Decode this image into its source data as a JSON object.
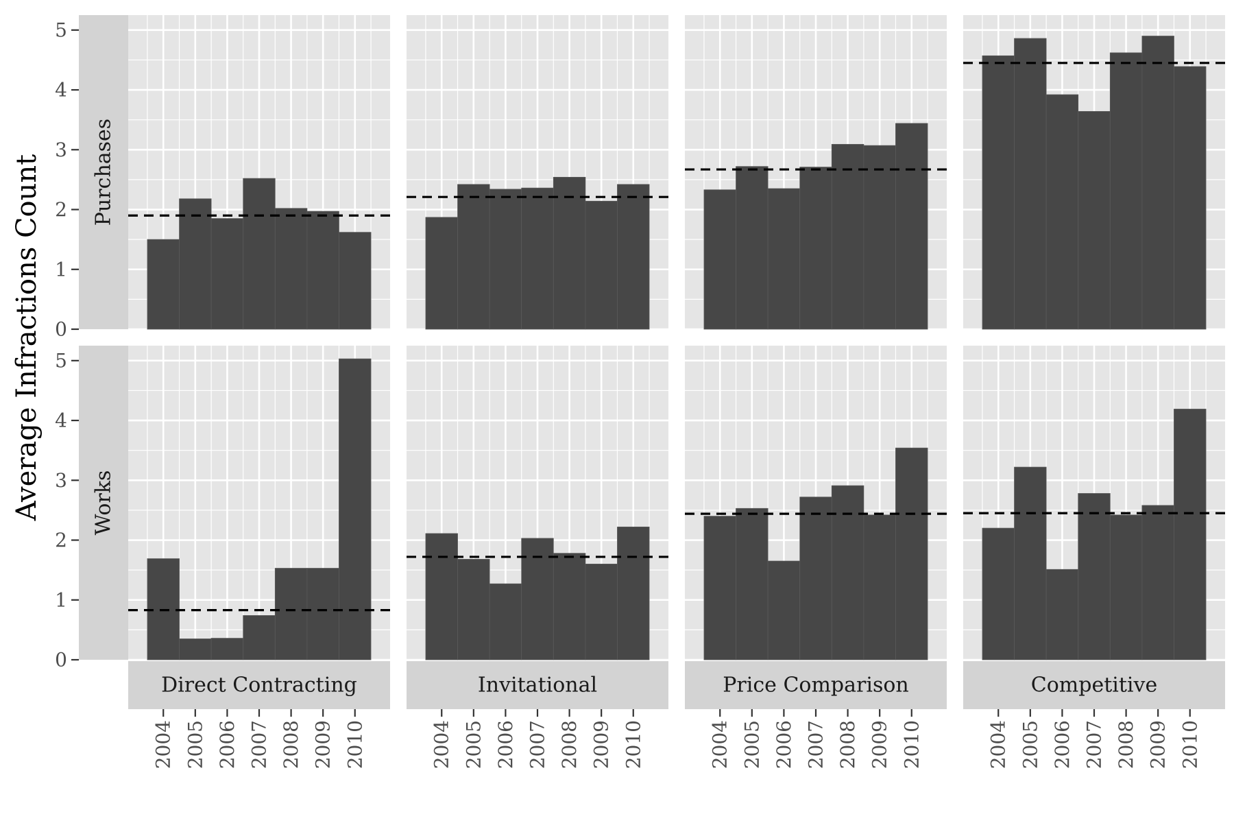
{
  "chart_data": {
    "type": "bar",
    "ylabel": "Average Infractions Count",
    "xlabel": "",
    "categories": [
      "2004",
      "2005",
      "2006",
      "2007",
      "2008",
      "2009",
      "2010"
    ],
    "ylim": [
      0,
      5.25
    ],
    "yticks": [
      "0",
      "1",
      "2",
      "3",
      "4",
      "5"
    ],
    "columns": [
      "Direct Contracting",
      "Invitational",
      "Price Comparison",
      "Competitive"
    ],
    "rows": [
      "Purchases",
      "Works"
    ],
    "grid": true,
    "colors": {
      "bar": "#474747",
      "panel": "#e5e5e5",
      "strip": "#d3d3d3",
      "grid": "#ffffff",
      "mean_line": "#000000"
    },
    "panels": [
      {
        "row": "Purchases",
        "column": "Direct Contracting",
        "values": [
          1.5,
          2.18,
          1.85,
          2.52,
          2.02,
          1.97,
          1.62
        ],
        "mean": 1.9
      },
      {
        "row": "Purchases",
        "column": "Invitational",
        "values": [
          1.87,
          2.42,
          2.34,
          2.36,
          2.54,
          2.14,
          2.42
        ],
        "mean": 2.21
      },
      {
        "row": "Purchases",
        "column": "Price Comparison",
        "values": [
          2.33,
          2.72,
          2.35,
          2.71,
          3.09,
          3.07,
          3.44
        ],
        "mean": 2.67
      },
      {
        "row": "Purchases",
        "column": "Competitive",
        "values": [
          4.57,
          4.86,
          3.92,
          3.64,
          4.62,
          4.9,
          4.39
        ],
        "mean": 4.45
      },
      {
        "row": "Works",
        "column": "Direct Contracting",
        "values": [
          1.69,
          0.35,
          0.36,
          0.74,
          1.53,
          1.53,
          5.03
        ],
        "mean": 0.83
      },
      {
        "row": "Works",
        "column": "Invitational",
        "values": [
          2.11,
          1.68,
          1.27,
          2.03,
          1.78,
          1.6,
          2.22
        ],
        "mean": 1.72
      },
      {
        "row": "Works",
        "column": "Price Comparison",
        "values": [
          2.4,
          2.53,
          1.65,
          2.72,
          2.91,
          2.42,
          3.54
        ],
        "mean": 2.44
      },
      {
        "row": "Works",
        "column": "Competitive",
        "values": [
          2.2,
          3.22,
          1.51,
          2.78,
          2.42,
          2.58,
          4.19
        ],
        "mean": 2.45
      }
    ]
  }
}
